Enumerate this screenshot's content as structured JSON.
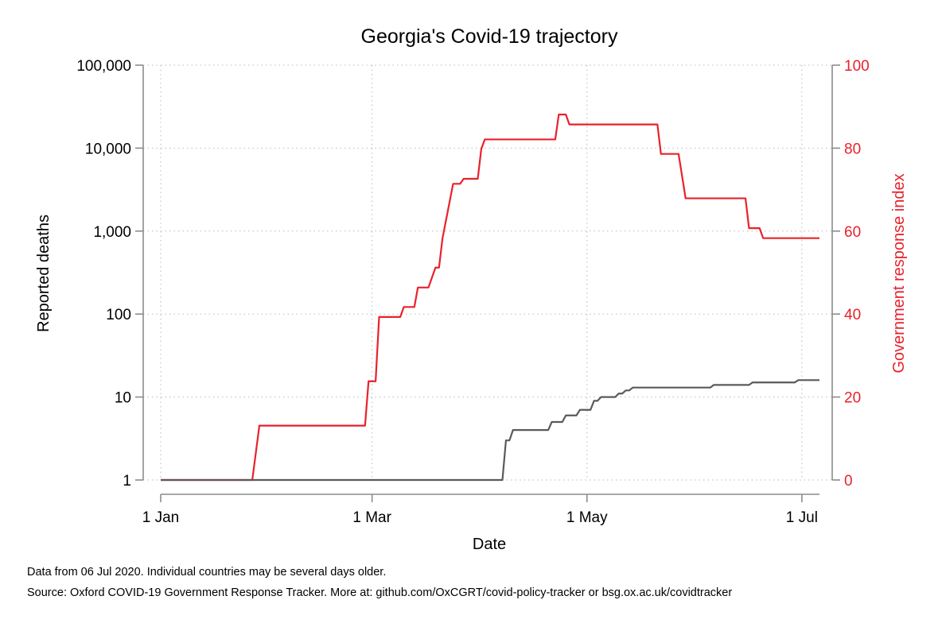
{
  "chart_data": {
    "type": "line",
    "title": "Georgia's Covid-19 trajectory",
    "xlabel": "Date",
    "ylabel_left": "Reported deaths",
    "ylabel_right": "Government response index",
    "x_range": [
      "2020-01-01",
      "2020-07-06"
    ],
    "x_ticks": [
      {
        "date": "2020-01-01",
        "label": "1 Jan"
      },
      {
        "date": "2020-03-01",
        "label": "1 Mar"
      },
      {
        "date": "2020-05-01",
        "label": "1 May"
      },
      {
        "date": "2020-07-01",
        "label": "1 Jul"
      }
    ],
    "left_axis": {
      "scale": "log",
      "ylim": [
        1,
        100000
      ],
      "ticks": [
        {
          "value": 1,
          "label": "1"
        },
        {
          "value": 10,
          "label": "10"
        },
        {
          "value": 100,
          "label": "100"
        },
        {
          "value": 1000,
          "label": "1,000"
        },
        {
          "value": 10000,
          "label": "10,000"
        },
        {
          "value": 100000,
          "label": "100,000"
        }
      ]
    },
    "right_axis": {
      "scale": "linear",
      "ylim": [
        0,
        100
      ],
      "ticks": [
        {
          "value": 0,
          "label": "0"
        },
        {
          "value": 20,
          "label": "20"
        },
        {
          "value": 40,
          "label": "40"
        },
        {
          "value": 60,
          "label": "60"
        },
        {
          "value": 80,
          "label": "80"
        },
        {
          "value": 100,
          "label": "100"
        }
      ],
      "color": "#e8222b"
    },
    "grid": true,
    "series": [
      {
        "axis": "left",
        "color": "#5a5a5a",
        "points": [
          [
            "2020-01-01",
            1
          ],
          [
            "2020-04-07",
            1
          ],
          [
            "2020-04-08",
            3
          ],
          [
            "2020-04-09",
            3
          ],
          [
            "2020-04-10",
            4
          ],
          [
            "2020-04-20",
            4
          ],
          [
            "2020-04-21",
            5
          ],
          [
            "2020-04-24",
            5
          ],
          [
            "2020-04-25",
            6
          ],
          [
            "2020-04-28",
            6
          ],
          [
            "2020-04-29",
            7
          ],
          [
            "2020-05-02",
            7
          ],
          [
            "2020-05-03",
            9
          ],
          [
            "2020-05-04",
            9
          ],
          [
            "2020-05-05",
            10
          ],
          [
            "2020-05-09",
            10
          ],
          [
            "2020-05-10",
            11
          ],
          [
            "2020-05-11",
            11
          ],
          [
            "2020-05-12",
            12
          ],
          [
            "2020-05-13",
            12
          ],
          [
            "2020-05-14",
            13
          ],
          [
            "2020-06-05",
            13
          ],
          [
            "2020-06-06",
            14
          ],
          [
            "2020-06-16",
            14
          ],
          [
            "2020-06-17",
            15
          ],
          [
            "2020-06-29",
            15
          ],
          [
            "2020-06-30",
            16
          ],
          [
            "2020-07-06",
            16
          ]
        ]
      },
      {
        "axis": "right",
        "color": "#e8222b",
        "points": [
          [
            "2020-01-01",
            0
          ],
          [
            "2020-01-27",
            0
          ],
          [
            "2020-01-29",
            13.1
          ],
          [
            "2020-02-28",
            13.1
          ],
          [
            "2020-02-29",
            23.8
          ],
          [
            "2020-03-02",
            23.8
          ],
          [
            "2020-03-03",
            39.3
          ],
          [
            "2020-03-09",
            39.3
          ],
          [
            "2020-03-10",
            41.7
          ],
          [
            "2020-03-13",
            41.7
          ],
          [
            "2020-03-14",
            46.4
          ],
          [
            "2020-03-17",
            46.4
          ],
          [
            "2020-03-18",
            48.8
          ],
          [
            "2020-03-19",
            51.2
          ],
          [
            "2020-03-20",
            51.2
          ],
          [
            "2020-03-21",
            58.3
          ],
          [
            "2020-03-24",
            71.4
          ],
          [
            "2020-03-26",
            71.4
          ],
          [
            "2020-03-27",
            72.6
          ],
          [
            "2020-03-31",
            72.6
          ],
          [
            "2020-04-01",
            79.8
          ],
          [
            "2020-04-02",
            82.1
          ],
          [
            "2020-04-22",
            82.1
          ],
          [
            "2020-04-23",
            88.1
          ],
          [
            "2020-04-25",
            88.1
          ],
          [
            "2020-04-26",
            85.7
          ],
          [
            "2020-05-21",
            85.7
          ],
          [
            "2020-05-22",
            78.6
          ],
          [
            "2020-05-27",
            78.6
          ],
          [
            "2020-05-29",
            67.9
          ],
          [
            "2020-06-15",
            67.9
          ],
          [
            "2020-06-16",
            60.7
          ],
          [
            "2020-06-19",
            60.7
          ],
          [
            "2020-06-20",
            58.3
          ],
          [
            "2020-07-06",
            58.3
          ]
        ]
      }
    ]
  },
  "notes": {
    "line1": "Data from 06 Jul 2020. Individual countries may be several days older.",
    "line2": "Source: Oxford COVID-19 Government Response Tracker. More at: github.com/OxCGRT/covid-policy-tracker or bsg.ox.ac.uk/covidtracker"
  }
}
